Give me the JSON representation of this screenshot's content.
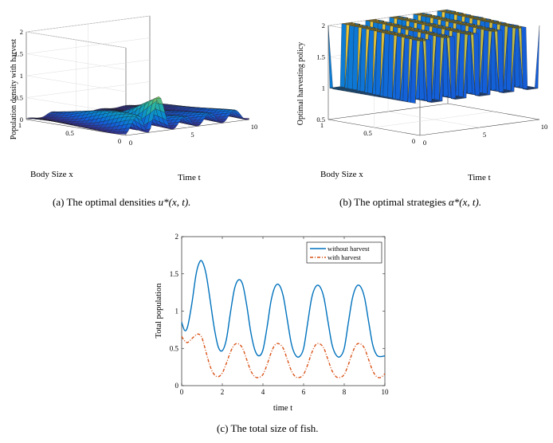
{
  "figure_a": {
    "caption_prefix": "(a) The optimal densities ",
    "caption_math": "u*(x, t).",
    "zlabel": "Population density with harvest",
    "xlabel": "Time t",
    "ylabel": "Body Size x",
    "z_ticks": [
      "0",
      "0.5",
      "1",
      "1.5",
      "2"
    ],
    "t_ticks": [
      "0",
      "5",
      "10"
    ],
    "x_ticks": [
      "0",
      "0.5",
      "1"
    ]
  },
  "figure_b": {
    "caption_prefix": "(b) The optimal strategies ",
    "caption_math": "α*(x, t).",
    "zlabel": "Optimal harvesting policy",
    "xlabel": "Time t",
    "ylabel": "Body Size x",
    "z_ticks": [
      "0.5",
      "1",
      "1.5",
      "2"
    ],
    "t_ticks": [
      "0",
      "5",
      "10"
    ],
    "x_ticks": [
      "0",
      "0.5",
      "1"
    ]
  },
  "figure_c": {
    "caption": "(c) The total size of fish.",
    "legend_without": "without harvest",
    "legend_with": "with harvest"
  },
  "chart_data": [
    {
      "type": "surface",
      "title": "",
      "xlabel": "Time t",
      "ylabel": "Body Size x",
      "zlabel": "Population density with harvest",
      "xlim": [
        0,
        10
      ],
      "ylim": [
        0,
        1
      ],
      "zlim": [
        0,
        2
      ],
      "peak_value": 1.1,
      "peak_location": {
        "t": 2.2,
        "x": 0.15
      },
      "colormap": "parula"
    },
    {
      "type": "surface",
      "title": "",
      "xlabel": "Time t",
      "ylabel": "Body Size x",
      "zlabel": "Optimal harvesting policy",
      "xlim": [
        0,
        10
      ],
      "ylim": [
        0,
        1
      ],
      "zlim": [
        0.5,
        2
      ],
      "switching_values": [
        2,
        1
      ],
      "switch_periods": 5,
      "colormap": "parula"
    },
    {
      "type": "line",
      "title": "",
      "xlabel": "time t",
      "ylabel": "Total population",
      "xlim": [
        0,
        10
      ],
      "ylim": [
        0,
        2
      ],
      "x_ticks": [
        0,
        2,
        4,
        6,
        8,
        10
      ],
      "y_ticks": [
        0,
        0.5,
        1,
        1.5,
        2
      ],
      "legend_position": "top-right",
      "series": [
        {
          "name": "without harvest",
          "color": "#0072BD",
          "style": "solid",
          "x": [
            0,
            0.15,
            0.3,
            0.5,
            0.7,
            0.85,
            1.0,
            1.2,
            1.4,
            1.6,
            1.8,
            2.0,
            2.2,
            2.4,
            2.6,
            2.8,
            3.0,
            3.2,
            3.4,
            3.6,
            3.8,
            4.0,
            4.2,
            4.4,
            4.6,
            4.8,
            5.0,
            5.2,
            5.4,
            5.6,
            5.8,
            6.0,
            6.2,
            6.4,
            6.6,
            6.8,
            7.0,
            7.2,
            7.4,
            7.6,
            7.8,
            8.0,
            8.2,
            8.4,
            8.6,
            8.8,
            9.0,
            9.2,
            9.4,
            9.6,
            9.8,
            10.0
          ],
          "y": [
            0.85,
            0.74,
            0.8,
            1.1,
            1.48,
            1.64,
            1.67,
            1.5,
            1.15,
            0.78,
            0.52,
            0.47,
            0.62,
            0.98,
            1.3,
            1.42,
            1.36,
            1.08,
            0.72,
            0.48,
            0.4,
            0.48,
            0.78,
            1.14,
            1.33,
            1.35,
            1.2,
            0.88,
            0.56,
            0.41,
            0.39,
            0.5,
            0.84,
            1.18,
            1.33,
            1.33,
            1.18,
            0.86,
            0.55,
            0.41,
            0.39,
            0.5,
            0.84,
            1.17,
            1.33,
            1.33,
            1.18,
            0.86,
            0.55,
            0.41,
            0.39,
            0.4
          ]
        },
        {
          "name": "with harvest",
          "color": "#D95319",
          "style": "dashdot",
          "x": [
            0,
            0.15,
            0.3,
            0.5,
            0.7,
            0.85,
            1.0,
            1.2,
            1.4,
            1.6,
            1.8,
            2.0,
            2.2,
            2.4,
            2.6,
            2.8,
            3.0,
            3.2,
            3.4,
            3.6,
            3.8,
            4.0,
            4.2,
            4.4,
            4.6,
            4.8,
            5.0,
            5.2,
            5.4,
            5.6,
            5.8,
            6.0,
            6.2,
            6.4,
            6.6,
            6.8,
            7.0,
            7.2,
            7.4,
            7.6,
            7.8,
            8.0,
            8.2,
            8.4,
            8.6,
            8.8,
            9.0,
            9.2,
            9.4,
            9.6,
            9.8,
            10.0
          ],
          "y": [
            0.66,
            0.6,
            0.58,
            0.63,
            0.68,
            0.69,
            0.64,
            0.45,
            0.26,
            0.15,
            0.12,
            0.17,
            0.3,
            0.45,
            0.55,
            0.56,
            0.5,
            0.35,
            0.2,
            0.12,
            0.11,
            0.15,
            0.28,
            0.44,
            0.55,
            0.56,
            0.5,
            0.35,
            0.2,
            0.12,
            0.11,
            0.15,
            0.28,
            0.44,
            0.55,
            0.56,
            0.5,
            0.35,
            0.2,
            0.12,
            0.11,
            0.15,
            0.28,
            0.44,
            0.55,
            0.56,
            0.5,
            0.35,
            0.2,
            0.12,
            0.11,
            0.16
          ]
        }
      ]
    }
  ]
}
